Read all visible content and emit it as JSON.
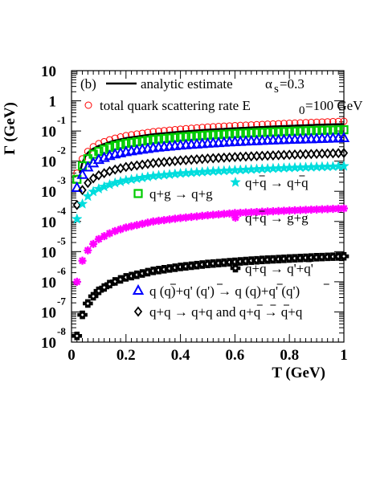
{
  "chart_data": {
    "type": "scatter",
    "panel_label": "(b)",
    "xlabel": "T (GeV)",
    "ylabel": "Γ (GeV)",
    "xlim": [
      0,
      1
    ],
    "ylim_log10": [
      -8,
      1
    ],
    "y_scale": "log",
    "x_ticks": [
      "0",
      "0.2",
      "0.4",
      "0.6",
      "0.8",
      "1"
    ],
    "y_ticks": [
      {
        "base": "10",
        "exp": "-8"
      },
      {
        "base": "10",
        "exp": "-7"
      },
      {
        "base": "10",
        "exp": "-6"
      },
      {
        "base": "10",
        "exp": "-5"
      },
      {
        "base": "10",
        "exp": "-4"
      },
      {
        "base": "10",
        "exp": "-3"
      },
      {
        "base": "10",
        "exp": "-2"
      },
      {
        "base": "10",
        "exp": "-1"
      },
      {
        "base": "1",
        "exp": ""
      },
      {
        "base": "10",
        "exp": ""
      }
    ],
    "legend_top": {
      "analytic": "analytic estimate",
      "alpha_symbol": "α",
      "alpha_sub": "s",
      "alpha_value": "=0.3",
      "total_rate": "total quark scattering rate  E",
      "total_rate_sub": "0",
      "total_rate_value": "=100 GeV"
    },
    "series": [
      {
        "key": "total",
        "name": "total quark scattering rate",
        "marker": "open-circle",
        "color": "#ff0000",
        "x": [
          0.02,
          0.04,
          0.06,
          0.08,
          0.1,
          0.15,
          0.2,
          0.3,
          0.4,
          0.5,
          0.6,
          0.7,
          0.8,
          0.9,
          1.0
        ],
        "y": [
          0.004,
          0.012,
          0.021,
          0.03,
          0.038,
          0.055,
          0.07,
          0.095,
          0.115,
          0.135,
          0.15,
          0.165,
          0.18,
          0.195,
          0.21
        ]
      },
      {
        "key": "analytic",
        "name": "analytic estimate",
        "marker": "line",
        "color": "#000000",
        "x": [
          0.03,
          0.04,
          0.05,
          0.06,
          0.08,
          0.1,
          0.15,
          0.2,
          0.3,
          0.4,
          0.5,
          0.6,
          0.7,
          0.8,
          0.9,
          1.0
        ],
        "y": [
          0.004,
          0.009,
          0.014,
          0.019,
          0.026,
          0.032,
          0.046,
          0.058,
          0.078,
          0.095,
          0.11,
          0.123,
          0.136,
          0.148,
          0.16,
          0.17
        ]
      },
      {
        "key": "qg",
        "name": "q+g → q+g",
        "marker": "open-square",
        "color": "#00cc00",
        "x": [
          0.02,
          0.04,
          0.06,
          0.08,
          0.1,
          0.15,
          0.2,
          0.3,
          0.4,
          0.5,
          0.6,
          0.7,
          0.8,
          0.9,
          1.0
        ],
        "y": [
          0.0025,
          0.007,
          0.012,
          0.017,
          0.021,
          0.031,
          0.039,
          0.052,
          0.063,
          0.073,
          0.082,
          0.09,
          0.097,
          0.104,
          0.11
        ]
      },
      {
        "key": "qqprime",
        "name": "q (q̄)+q' (q̄') → q (q̄)+q' (q̄')",
        "marker": "open-triangle",
        "color": "#0000ff",
        "x": [
          0.02,
          0.04,
          0.06,
          0.08,
          0.1,
          0.15,
          0.2,
          0.3,
          0.4,
          0.5,
          0.6,
          0.7,
          0.8,
          0.9,
          1.0
        ],
        "y": [
          0.0013,
          0.0035,
          0.0062,
          0.0085,
          0.011,
          0.016,
          0.02,
          0.027,
          0.033,
          0.038,
          0.043,
          0.047,
          0.051,
          0.054,
          0.058
        ]
      },
      {
        "key": "qq",
        "name": "q+q → q+q and q̄+q̄ → q̄+q̄",
        "marker": "open-diamond",
        "color": "#000000",
        "x": [
          0.02,
          0.04,
          0.06,
          0.08,
          0.1,
          0.15,
          0.2,
          0.3,
          0.4,
          0.5,
          0.6,
          0.7,
          0.8,
          0.9,
          1.0
        ],
        "y": [
          0.00035,
          0.0011,
          0.0019,
          0.0027,
          0.0034,
          0.005,
          0.0064,
          0.0086,
          0.0105,
          0.0122,
          0.0137,
          0.015,
          0.0163,
          0.0175,
          0.0186
        ]
      },
      {
        "key": "qqbar_qqbar",
        "name": "q+q̄ → q+q̄",
        "marker": "star",
        "color": "#00dddd",
        "x": [
          0.02,
          0.04,
          0.06,
          0.08,
          0.1,
          0.15,
          0.2,
          0.3,
          0.4,
          0.5,
          0.6,
          0.7,
          0.8,
          0.9,
          1.0
        ],
        "y": [
          0.00012,
          0.00038,
          0.00068,
          0.00097,
          0.0012,
          0.0018,
          0.0023,
          0.0032,
          0.0039,
          0.0045,
          0.005,
          0.0055,
          0.006,
          0.0064,
          0.0068
        ]
      },
      {
        "key": "qqbar_gg",
        "name": "q+q̄ → g+g",
        "marker": "asterisk",
        "color": "#ff00ff",
        "x": [
          0.02,
          0.04,
          0.06,
          0.08,
          0.1,
          0.15,
          0.2,
          0.3,
          0.4,
          0.5,
          0.6,
          0.7,
          0.8,
          0.9,
          1.0
        ],
        "y": [
          1e-06,
          5e-06,
          1.1e-05,
          1.8e-05,
          2.6e-05,
          4.5e-05,
          6.3e-05,
          0.0001,
          0.00013,
          0.00016,
          0.00019,
          0.00021,
          0.00023,
          0.00025,
          0.00027
        ]
      },
      {
        "key": "qqbar_qprime",
        "name": "q+q̄ → q'+q̄'",
        "marker": "cross",
        "color": "#000000",
        "x": [
          0.02,
          0.04,
          0.06,
          0.08,
          0.1,
          0.15,
          0.2,
          0.3,
          0.4,
          0.5,
          0.6,
          0.7,
          0.8,
          0.9,
          1.0
        ],
        "y": [
          1.6e-08,
          8e-08,
          1.9e-07,
          3.3e-07,
          5e-07,
          9.5e-07,
          1.4e-06,
          2.3e-06,
          3.1e-06,
          3.9e-06,
          4.6e-06,
          5.3e-06,
          5.9e-06,
          6.5e-06,
          7e-06
        ]
      }
    ],
    "inline_legend": [
      {
        "key": "qqbar_qqbar",
        "marker": "star",
        "color": "#00dddd",
        "text": "q+q → q+q",
        "bars": [
          2,
          8
        ]
      },
      {
        "key": "qg",
        "marker": "open-square",
        "color": "#00cc00",
        "text": "q+g → q+g",
        "bars": []
      },
      {
        "key": "qqbar_gg",
        "marker": "asterisk",
        "color": "#ff00ff",
        "text": "q+q → g+g",
        "bars": [
          2
        ]
      },
      {
        "key": "qqbar_qprime",
        "marker": "cross",
        "color": "#000000",
        "text": "q+q → q'+q'",
        "bars": [
          2,
          9
        ]
      },
      {
        "key": "qqprime",
        "marker": "open-triangle",
        "color": "#0000ff",
        "text": "q (q)+q' (q') → q (q)+q' (q')",
        "bars": [
          3,
          10,
          19,
          26
        ]
      },
      {
        "key": "qq",
        "marker": "open-diamond",
        "color": "#000000",
        "text": "q+q → q+q and q+q → q+q",
        "bars": [
          16,
          18,
          20
        ]
      }
    ]
  }
}
